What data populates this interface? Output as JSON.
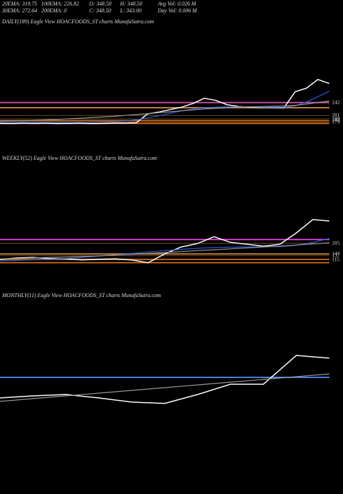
{
  "header": {
    "rows": [
      [
        "20EMA: 319.75",
        "100EMA: 226.82",
        "O: 348.50",
        "H: 348.50",
        "Avg Vol: 0.026  M"
      ],
      [
        "30EMA: 272.64",
        "200EMA: 0",
        "C: 348.50",
        "L: 343.00",
        "Day Vol: 0.006  M"
      ]
    ]
  },
  "chart_data": [
    {
      "type": "line",
      "title": "DAILY(189) Eagle  View  HOACFOODS_ST charts MunafaSutra.com",
      "ylim": [
        130,
        510
      ],
      "yticks": [
        242,
        201,
        189,
        185,
        179
      ],
      "levels": [
        {
          "value": 243,
          "color": "#d040d0"
        },
        {
          "value": 226,
          "color": "#c08040"
        },
        {
          "value": 184,
          "color": "#c06010"
        },
        {
          "value": 175,
          "color": "#c06010"
        }
      ],
      "series": [
        {
          "color": "#ffffff",
          "values": [
            175,
            174,
            176,
            175,
            176,
            174,
            175,
            176,
            174,
            175,
            176,
            176,
            177,
            206,
            212,
            220,
            228,
            240,
            257,
            250,
            236,
            230,
            228,
            227,
            227,
            226,
            278,
            290,
            318,
            305
          ]
        },
        {
          "color": "#2a5fe0",
          "values": [
            179,
            179,
            179,
            179,
            179,
            179,
            179,
            179,
            179,
            180,
            181,
            183,
            187,
            193,
            200,
            208,
            216,
            222,
            226,
            228,
            229,
            229,
            229,
            228,
            228,
            228,
            232,
            245,
            262,
            280
          ]
        },
        {
          "color": "#999999",
          "values": [
            182,
            183,
            184,
            185,
            186,
            188,
            190,
            192,
            194,
            196,
            198,
            201,
            204,
            207,
            210,
            213,
            216,
            219,
            222,
            224,
            226,
            228,
            229,
            230,
            231,
            232,
            234,
            238,
            243,
            248
          ]
        }
      ]
    },
    {
      "type": "line",
      "title": "WEEKLY(52) Eagle  View  HOACFOODS_ST charts MunafaSutra.com",
      "ylim": [
        35,
        635
      ],
      "yticks": [
        205,
        147,
        137,
        115
      ],
      "levels": [
        {
          "value": 226,
          "color": "#d040d0"
        },
        {
          "value": 147,
          "color": "#c08040"
        },
        {
          "value": 117,
          "color": "#c06010"
        },
        {
          "value": 99,
          "color": "#c06010"
        }
      ],
      "series": [
        {
          "color": "#ffffff",
          "values": [
            117,
            125,
            128,
            122,
            120,
            115,
            118,
            120,
            114,
            99,
            147,
            185,
            204,
            241,
            210,
            200,
            190,
            200,
            262,
            335,
            327
          ]
        },
        {
          "color": "#2a5fe0",
          "values": [
            110,
            112,
            115,
            118,
            122,
            128,
            135,
            142,
            150,
            158,
            165,
            172,
            178,
            182,
            184,
            185,
            186,
            187,
            195,
            210,
            232
          ]
        },
        {
          "color": "#999999",
          "values": [
            120,
            122,
            125,
            128,
            130,
            133,
            137,
            141,
            145,
            150,
            155,
            160,
            165,
            170,
            175,
            180,
            185,
            190,
            196,
            202,
            208
          ]
        }
      ]
    },
    {
      "type": "line",
      "title": "MONTHLY(11) Eagle  View  HOACFOODS_ST charts MunafaSutra.com",
      "ylim": [
        0,
        520
      ],
      "yticks": [],
      "levels": [
        {
          "value": 300,
          "color": "#4a80e0"
        }
      ],
      "series": [
        {
          "color": "#ffffff",
          "values": [
            240,
            246,
            250,
            240,
            228,
            224,
            250,
            280,
            280,
            364,
            356
          ]
        },
        {
          "color": "#999999",
          "values": [
            230,
            238,
            246,
            254,
            262,
            270,
            278,
            286,
            294,
            302,
            310
          ]
        }
      ]
    }
  ]
}
